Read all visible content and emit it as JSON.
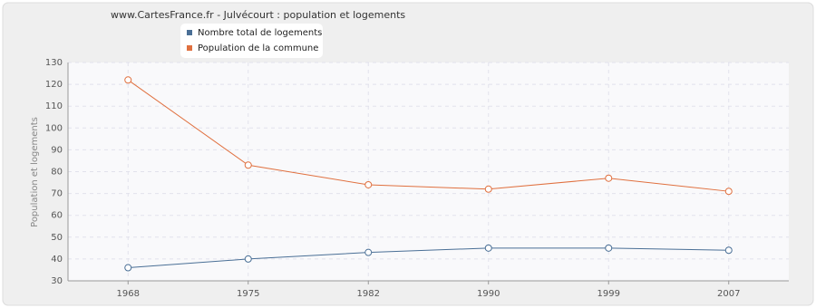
{
  "chart_data": {
    "type": "line",
    "title": "www.CartesFrance.fr - Julvécourt : population et logements",
    "y_label": "Population et logements",
    "categories": [
      "1968",
      "1975",
      "1982",
      "1990",
      "1999",
      "2007"
    ],
    "series": [
      {
        "name": "Nombre total de logements",
        "color": "#4a6f96",
        "values": [
          36,
          40,
          43,
          45,
          45,
          44
        ]
      },
      {
        "name": "Population de la commune",
        "color": "#e0703f",
        "values": [
          122,
          83,
          74,
          72,
          77,
          71
        ]
      }
    ],
    "ylim": [
      30,
      130
    ],
    "yticks": [
      30,
      40,
      50,
      60,
      70,
      80,
      90,
      100,
      110,
      120,
      130
    ],
    "grid": true
  }
}
